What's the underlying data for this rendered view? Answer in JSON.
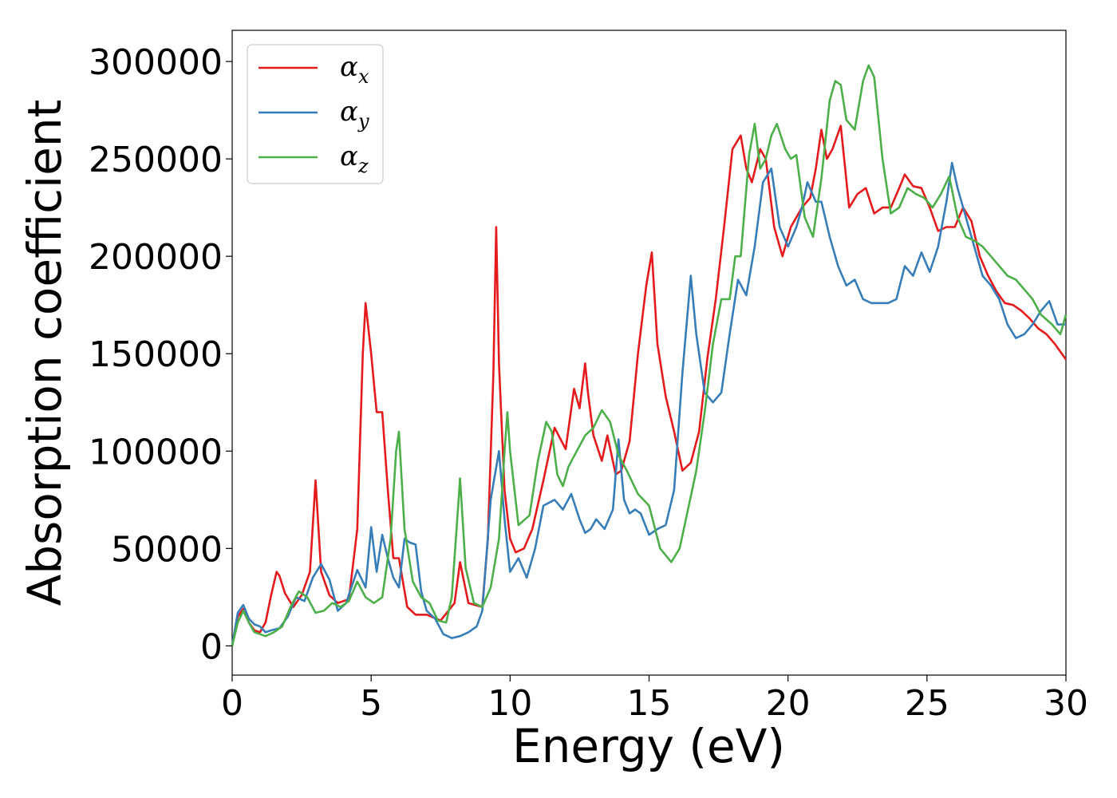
{
  "chart_data": {
    "type": "line",
    "xlabel": "Energy (eV)",
    "ylabel": "Absorption coefficient",
    "xlim": [
      0,
      30
    ],
    "ylim": [
      -15000,
      316000
    ],
    "xticks": [
      0,
      5,
      10,
      15,
      20,
      25,
      30
    ],
    "yticks": [
      0,
      50000,
      100000,
      150000,
      200000,
      250000,
      300000
    ],
    "grid": false,
    "legend_position": "top-left",
    "series": [
      {
        "name": "α",
        "subscript": "x",
        "color": "#e41a1c",
        "x": [
          0,
          0.2,
          0.4,
          0.6,
          0.8,
          1.0,
          1.2,
          1.4,
          1.6,
          1.7,
          1.9,
          2.2,
          2.5,
          2.8,
          3.0,
          3.2,
          3.5,
          3.8,
          4.2,
          4.5,
          4.7,
          4.8,
          5.0,
          5.2,
          5.4,
          5.6,
          5.8,
          6.0,
          6.3,
          6.6,
          7.0,
          7.5,
          8.0,
          8.2,
          8.5,
          9.0,
          9.2,
          9.4,
          9.5,
          9.6,
          9.8,
          10.0,
          10.2,
          10.5,
          10.8,
          11.2,
          11.6,
          12.0,
          12.3,
          12.5,
          12.7,
          12.8,
          13.0,
          13.3,
          13.5,
          13.8,
          14.0,
          14.3,
          14.6,
          14.9,
          15.1,
          15.3,
          15.6,
          15.9,
          16.2,
          16.5,
          16.8,
          17.1,
          17.4,
          17.7,
          18.0,
          18.3,
          18.5,
          18.7,
          19.0,
          19.2,
          19.5,
          19.8,
          20.1,
          20.5,
          20.8,
          21.0,
          21.2,
          21.4,
          21.6,
          21.9,
          22.2,
          22.5,
          22.8,
          23.1,
          23.4,
          23.7,
          24.0,
          24.2,
          24.5,
          24.8,
          25.1,
          25.4,
          25.7,
          26.0,
          26.3,
          26.6,
          26.9,
          27.2,
          27.5,
          27.8,
          28.1,
          28.4,
          28.7,
          29.0,
          29.3,
          29.6,
          30.0
        ],
        "values": [
          0,
          15000,
          19000,
          12000,
          8000,
          7000,
          12000,
          26000,
          38000,
          36000,
          27000,
          20000,
          26000,
          38000,
          85000,
          38000,
          26000,
          22000,
          24000,
          60000,
          150000,
          176000,
          150000,
          120000,
          120000,
          80000,
          45000,
          45000,
          20000,
          16000,
          16000,
          13000,
          22000,
          43000,
          22000,
          20000,
          55000,
          140000,
          215000,
          145000,
          80000,
          55000,
          48000,
          50000,
          60000,
          85000,
          112000,
          101000,
          132000,
          122000,
          145000,
          130000,
          108000,
          95000,
          108000,
          88000,
          90000,
          105000,
          150000,
          185000,
          202000,
          155000,
          128000,
          110000,
          90000,
          94000,
          110000,
          148000,
          178000,
          215000,
          255000,
          262000,
          245000,
          238000,
          255000,
          250000,
          215000,
          200000,
          215000,
          225000,
          230000,
          245000,
          265000,
          250000,
          255000,
          267000,
          225000,
          232000,
          235000,
          222000,
          225000,
          225000,
          235000,
          242000,
          236000,
          235000,
          225000,
          213000,
          215000,
          215000,
          225000,
          218000,
          200000,
          190000,
          182000,
          176000,
          175000,
          172000,
          168000,
          163000,
          160000,
          155000,
          147000
        ]
      },
      {
        "name": "α",
        "subscript": "y",
        "color": "#377eb8",
        "x": [
          0,
          0.2,
          0.4,
          0.6,
          0.8,
          1.0,
          1.2,
          1.4,
          1.7,
          2.0,
          2.3,
          2.6,
          2.9,
          3.2,
          3.5,
          3.8,
          4.1,
          4.5,
          4.8,
          5.0,
          5.2,
          5.4,
          5.6,
          5.8,
          6.0,
          6.2,
          6.4,
          6.6,
          6.8,
          7.0,
          7.3,
          7.6,
          7.9,
          8.2,
          8.5,
          8.8,
          9.0,
          9.3,
          9.6,
          9.8,
          10.0,
          10.3,
          10.6,
          10.9,
          11.2,
          11.6,
          11.9,
          12.2,
          12.5,
          12.7,
          12.9,
          13.1,
          13.4,
          13.7,
          13.9,
          14.1,
          14.3,
          14.5,
          14.7,
          15.0,
          15.3,
          15.6,
          15.9,
          16.2,
          16.5,
          16.7,
          17.0,
          17.3,
          17.6,
          17.9,
          18.2,
          18.5,
          18.8,
          19.1,
          19.4,
          19.7,
          20.0,
          20.3,
          20.5,
          20.7,
          21.0,
          21.2,
          21.5,
          21.8,
          22.1,
          22.4,
          22.7,
          23.0,
          23.3,
          23.6,
          23.9,
          24.2,
          24.5,
          24.8,
          25.1,
          25.4,
          25.7,
          25.9,
          26.1,
          26.4,
          26.7,
          27.0,
          27.3,
          27.6,
          27.9,
          28.2,
          28.5,
          28.8,
          29.1,
          29.4,
          29.7,
          30.0
        ],
        "values": [
          0,
          17000,
          21000,
          14000,
          11000,
          10000,
          7000,
          8000,
          9000,
          15000,
          25000,
          23000,
          35000,
          42000,
          34000,
          18000,
          22000,
          39000,
          30000,
          61000,
          38000,
          57000,
          45000,
          35000,
          30000,
          55000,
          53000,
          52000,
          28000,
          18000,
          14000,
          6000,
          4000,
          5000,
          7000,
          10000,
          18000,
          75000,
          100000,
          65000,
          38000,
          45000,
          35000,
          50000,
          72000,
          75000,
          70000,
          78000,
          65000,
          58000,
          60000,
          65000,
          60000,
          70000,
          106000,
          75000,
          68000,
          70000,
          68000,
          57000,
          60000,
          62000,
          80000,
          140000,
          190000,
          160000,
          130000,
          125000,
          130000,
          160000,
          188000,
          180000,
          205000,
          238000,
          245000,
          215000,
          205000,
          215000,
          225000,
          238000,
          228000,
          228000,
          210000,
          195000,
          185000,
          188000,
          178000,
          176000,
          176000,
          176000,
          178000,
          195000,
          190000,
          202000,
          192000,
          205000,
          228000,
          248000,
          235000,
          220000,
          205000,
          190000,
          185000,
          178000,
          165000,
          158000,
          160000,
          165000,
          172000,
          177000,
          165000,
          165000
        ]
      },
      {
        "name": "α",
        "subscript": "z",
        "color": "#4daf4a",
        "x": [
          0,
          0.2,
          0.4,
          0.6,
          0.8,
          1.0,
          1.2,
          1.5,
          1.8,
          2.1,
          2.4,
          2.7,
          3.0,
          3.3,
          3.6,
          3.9,
          4.2,
          4.5,
          4.8,
          5.1,
          5.4,
          5.7,
          5.9,
          6.0,
          6.2,
          6.5,
          6.8,
          7.1,
          7.4,
          7.7,
          7.9,
          8.1,
          8.2,
          8.4,
          8.7,
          9.0,
          9.3,
          9.6,
          9.8,
          9.9,
          10.0,
          10.3,
          10.7,
          11.0,
          11.3,
          11.5,
          11.7,
          11.9,
          12.1,
          12.4,
          12.7,
          13.0,
          13.3,
          13.6,
          13.9,
          14.2,
          14.6,
          15.0,
          15.4,
          15.8,
          16.1,
          16.4,
          16.7,
          17.0,
          17.3,
          17.6,
          17.9,
          18.1,
          18.3,
          18.6,
          18.8,
          19.0,
          19.2,
          19.4,
          19.6,
          19.9,
          20.1,
          20.3,
          20.6,
          20.9,
          21.2,
          21.5,
          21.7,
          21.9,
          22.1,
          22.4,
          22.7,
          22.9,
          23.1,
          23.4,
          23.7,
          24.0,
          24.3,
          24.6,
          24.9,
          25.2,
          25.5,
          25.8,
          26.1,
          26.4,
          26.7,
          27.0,
          27.3,
          27.6,
          27.9,
          28.2,
          28.5,
          28.8,
          29.1,
          29.5,
          29.8,
          30.0
        ],
        "values": [
          0,
          12000,
          18000,
          12000,
          7000,
          6000,
          5000,
          7000,
          10000,
          20000,
          28000,
          25000,
          17000,
          18000,
          22000,
          20000,
          23000,
          33000,
          25000,
          22000,
          25000,
          55000,
          100000,
          110000,
          60000,
          33000,
          25000,
          22000,
          13000,
          12000,
          25000,
          65000,
          86000,
          40000,
          22000,
          20000,
          30000,
          55000,
          100000,
          120000,
          100000,
          62000,
          67000,
          95000,
          115000,
          110000,
          88000,
          82000,
          92000,
          100000,
          108000,
          112000,
          121000,
          115000,
          98000,
          90000,
          78000,
          72000,
          50000,
          43000,
          50000,
          70000,
          90000,
          120000,
          155000,
          178000,
          178000,
          200000,
          200000,
          252000,
          268000,
          245000,
          250000,
          262000,
          268000,
          255000,
          250000,
          252000,
          220000,
          210000,
          240000,
          280000,
          290000,
          288000,
          270000,
          265000,
          290000,
          298000,
          292000,
          250000,
          222000,
          225000,
          235000,
          232000,
          230000,
          225000,
          232000,
          241000,
          220000,
          210000,
          208000,
          205000,
          200000,
          195000,
          190000,
          188000,
          183000,
          178000,
          170000,
          165000,
          160000,
          170000
        ]
      }
    ]
  }
}
